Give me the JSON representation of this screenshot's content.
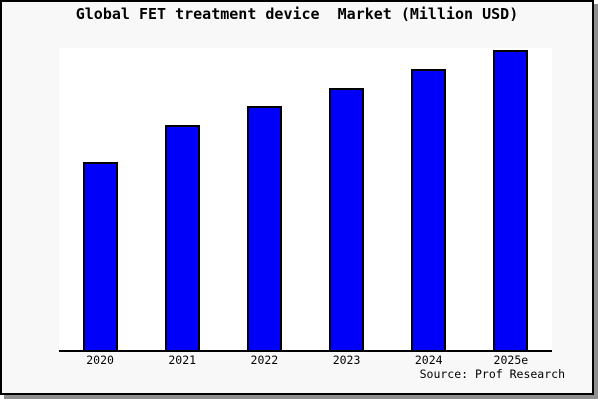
{
  "title": "Global FET treatment device  Market (Million USD)",
  "source": {
    "text": "Source: Prof Research"
  },
  "colors": {
    "bar_fill": "#0000fa",
    "bar_edge": "#000000",
    "card_background": "#f8f8f8",
    "plot_background": "#ffffff",
    "shadow": "#8f8f8f"
  },
  "chart_data": {
    "type": "bar",
    "title": "Global FET treatment device  Market (Million USD)",
    "categories": [
      "2020",
      "2021",
      "2022",
      "2023",
      "2024",
      "2025e"
    ],
    "values": [
      188,
      225,
      244,
      262,
      281,
      300
    ],
    "series_note": "No y-axis scale, gridlines or data labels are shown; values are relative bar heights measured in pixels",
    "xlabel": "",
    "ylabel": "",
    "y_axis_visible": false,
    "grid": false,
    "legend": false,
    "bar_color": "#0000fa"
  }
}
